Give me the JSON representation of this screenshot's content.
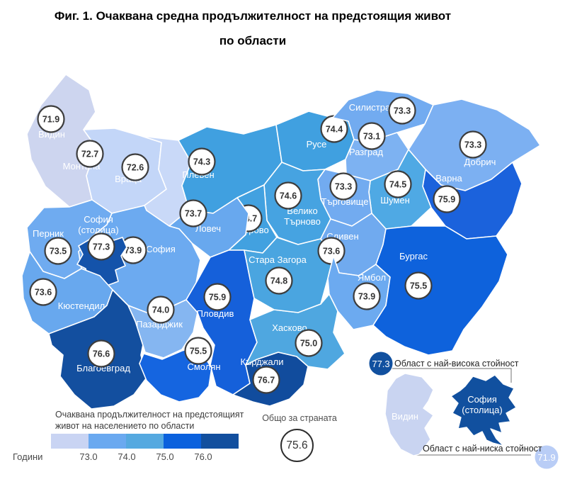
{
  "title": {
    "line1": "Фиг. 1. Очаквана средна продължителност на предстоящия живот",
    "line2": "по области"
  },
  "chart_data": {
    "type": "choropleth-map",
    "title": "Очаквана средна продължителност на предстоящия живот по области",
    "unit_label": "Години",
    "national_total": {
      "label": "Общо за страната",
      "value": "75.6"
    },
    "legend": {
      "title_line1": "Очаквана продължителност на предстоящият",
      "title_line2": "живот на населението по области",
      "ticks": [
        "73.0",
        "74.0",
        "75.0",
        "76.0"
      ],
      "colors": [
        "#c9d4f3",
        "#6aa9f0",
        "#55a9e0",
        "#0b61dd",
        "#124f9e"
      ]
    },
    "callouts": {
      "highest": {
        "label": "Област с най-висока стойност",
        "value": "77.3",
        "region": "София (столица)"
      },
      "lowest": {
        "label": "Област с най-ниска стойност",
        "value": "71.9",
        "region": "Видин"
      },
      "highest_color": "#11509f",
      "lowest_color": "#b9cdf6"
    },
    "regions": [
      {
        "id": "vidin",
        "name_lines": [
          "Видин"
        ],
        "value": "71.9",
        "color": "#cdd5ef",
        "label": [
          73,
          190
        ],
        "badge": [
          72,
          168
        ]
      },
      {
        "id": "montana",
        "name_lines": [
          "Монтана"
        ],
        "value": "72.7",
        "color": "#c3d6f8",
        "label": [
          115,
          235
        ],
        "badge": [
          127,
          217
        ]
      },
      {
        "id": "vratsa",
        "name_lines": [
          "Враца"
        ],
        "value": "72.6",
        "color": "#c9d9f8",
        "label": [
          181,
          253
        ],
        "badge": [
          191,
          236
        ]
      },
      {
        "id": "pleven",
        "name_lines": [
          "Плевен"
        ],
        "value": "74.3",
        "color": "#40a0e0",
        "label": [
          280,
          247
        ],
        "badge": [
          285,
          228
        ]
      },
      {
        "id": "ruse",
        "name_lines": [
          "Русе"
        ],
        "value": "74.4",
        "color": "#40a0e0",
        "label": [
          447,
          204
        ],
        "badge": [
          472,
          182
        ]
      },
      {
        "id": "silistra",
        "name_lines": [
          "Силистра"
        ],
        "value": "73.3",
        "color": "#72abf0",
        "label": [
          522,
          152
        ],
        "badge": [
          568,
          156
        ]
      },
      {
        "id": "razgrad",
        "name_lines": [
          "Разград"
        ],
        "value": "73.1",
        "color": "#7db2f2",
        "label": [
          517,
          215
        ],
        "badge": [
          525,
          192
        ]
      },
      {
        "id": "dobrich",
        "name_lines": [
          "Добрич"
        ],
        "value": "73.3",
        "color": "#7cb0f2",
        "label": [
          678,
          229
        ],
        "badge": [
          668,
          204
        ]
      },
      {
        "id": "varna",
        "name_lines": [
          "Варна"
        ],
        "value": "75.9",
        "color": "#1b62dc",
        "label": [
          634,
          252
        ],
        "badge": [
          631,
          281
        ]
      },
      {
        "id": "shumen",
        "name_lines": [
          "Шумен"
        ],
        "value": "74.5",
        "color": "#4fa9e4",
        "label": [
          558,
          283
        ],
        "badge": [
          562,
          260
        ]
      },
      {
        "id": "targovishte",
        "name_lines": [
          "Търговище"
        ],
        "value": "73.3",
        "color": "#72abf0",
        "label": [
          487,
          285
        ],
        "badge": [
          485,
          263
        ]
      },
      {
        "id": "veliko-tarnovo",
        "name_lines": [
          "Велико",
          "Търново"
        ],
        "value": "74.6",
        "color": "#46a3e1",
        "label": [
          427,
          298
        ],
        "badge": [
          407,
          276
        ]
      },
      {
        "id": "gabrovo",
        "name_lines": [
          "Габрово"
        ],
        "value": "74.7",
        "color": "#42a1e0",
        "label": [
          355,
          325
        ],
        "badge": [
          351,
          308
        ]
      },
      {
        "id": "lovech",
        "name_lines": [
          "Ловеч"
        ],
        "value": "73.7",
        "color": "#68a8ee",
        "label": [
          294,
          323
        ],
        "badge": [
          273,
          301
        ]
      },
      {
        "id": "pernik",
        "name_lines": [
          "Перник"
        ],
        "value": "73.5",
        "color": "#6fabf0",
        "label": [
          68,
          330
        ],
        "badge": [
          82,
          354
        ]
      },
      {
        "id": "sofia",
        "name_lines": [
          "София"
        ],
        "value": "73.9",
        "color": "#6caaf0",
        "label": [
          227,
          352
        ],
        "badge": [
          188,
          353
        ]
      },
      {
        "id": "sofia-city",
        "name_lines": [
          "София",
          "(столица)"
        ],
        "value": "77.3",
        "color": "#1453aa",
        "label": [
          139,
          310
        ],
        "badge": [
          143,
          348
        ]
      },
      {
        "id": "kyustendil",
        "name_lines": [
          "Кюстендил"
        ],
        "value": "73.6",
        "color": "#68a8ee",
        "label": [
          115,
          432
        ],
        "badge": [
          61,
          412
        ]
      },
      {
        "id": "blagoevgrad",
        "name_lines": [
          "Благоевград"
        ],
        "value": "76.6",
        "color": "#134f9f",
        "label": [
          146,
          520
        ],
        "badge": [
          143,
          499
        ]
      },
      {
        "id": "pazardzhik",
        "name_lines": [
          "Пазарджик"
        ],
        "value": "74.0",
        "color": "#85b6f1",
        "label": [
          225,
          458
        ],
        "badge": [
          227,
          437
        ]
      },
      {
        "id": "plovdiv",
        "name_lines": [
          "Пловдив"
        ],
        "value": "75.9",
        "color": "#1560da",
        "label": [
          304,
          443
        ],
        "badge": [
          307,
          419
        ]
      },
      {
        "id": "smolyan",
        "name_lines": [
          "Смолян"
        ],
        "value": "75.5",
        "color": "#1565e0",
        "label": [
          288,
          518
        ],
        "badge": [
          280,
          495
        ]
      },
      {
        "id": "kardzhali",
        "name_lines": [
          "Кърджали"
        ],
        "value": "76.7",
        "color": "#114c9d",
        "label": [
          370,
          511
        ],
        "badge": [
          376,
          536
        ]
      },
      {
        "id": "haskovo",
        "name_lines": [
          "Хасково"
        ],
        "value": "75.0",
        "color": "#4fa7e0",
        "label": [
          409,
          463
        ],
        "badge": [
          436,
          484
        ]
      },
      {
        "id": "stara-zagora",
        "name_lines": [
          "Стара Загора"
        ],
        "value": "74.8",
        "color": "#4aa5e0",
        "label": [
          392,
          367
        ],
        "badge": [
          394,
          396
        ]
      },
      {
        "id": "sliven",
        "name_lines": [
          "Сливен"
        ],
        "value": "73.6",
        "color": "#70aaef",
        "label": [
          484,
          334
        ],
        "badge": [
          468,
          354
        ]
      },
      {
        "id": "yambol",
        "name_lines": [
          "Ямбол"
        ],
        "value": "73.9",
        "color": "#6caaf0",
        "label": [
          525,
          392
        ],
        "badge": [
          518,
          418
        ]
      },
      {
        "id": "burgas",
        "name_lines": [
          "Бургас"
        ],
        "value": "75.5",
        "color": "#0e62dc",
        "label": [
          584,
          362
        ],
        "badge": [
          591,
          403
        ]
      }
    ],
    "insets": [
      {
        "id": "inset-vidin",
        "name_lines": [
          "Видин"
        ],
        "color": "#c9d4f1",
        "label": [
          572,
          588
        ]
      },
      {
        "id": "inset-sofia-city",
        "name_lines": [
          "София",
          "(столица)"
        ],
        "color": "#11509f",
        "label": [
          681,
          564
        ]
      }
    ]
  }
}
